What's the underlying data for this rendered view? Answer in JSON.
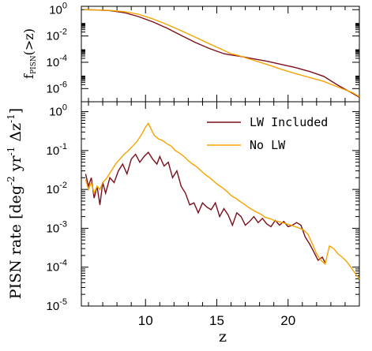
{
  "chart_data": [
    {
      "type": "line",
      "title": "",
      "xlabel": "",
      "ylabel": "f_PISN(>z)",
      "ylabel_main": "f",
      "ylabel_sub": "PISN",
      "ylabel_tail": "(>z)",
      "scale": "log-y",
      "xlim": [
        5.5,
        25
      ],
      "ylim": [
        1e-07,
        1.8
      ],
      "yticks": [
        {
          "value": 1,
          "base": "10",
          "exp": "0"
        },
        {
          "value": 0.01,
          "base": "10",
          "exp": "-2"
        },
        {
          "value": 0.0001,
          "base": "10",
          "exp": "-4"
        },
        {
          "value": 1e-06,
          "base": "10",
          "exp": "-6"
        }
      ],
      "series": [
        {
          "name": "LW Included",
          "color": "#7a0f1c",
          "x": [
            5.7,
            6.5,
            7.5,
            8.5,
            9.5,
            10.5,
            11.5,
            12.5,
            13.5,
            14.5,
            15.5,
            16.0,
            16.5,
            17.5,
            18.5,
            19.5,
            20.5,
            21.5,
            22.5,
            23.5,
            24.5,
            25.0
          ],
          "y": [
            1.0,
            0.95,
            0.85,
            0.6,
            0.3,
            0.12,
            0.04,
            0.011,
            0.0032,
            0.0011,
            0.00045,
            0.00036,
            0.0003,
            0.00019,
            0.00012,
            7e-05,
            4e-05,
            2e-05,
            8.5e-06,
            1.8e-06,
            4.5e-07,
            2.2e-07
          ]
        },
        {
          "name": "No LW",
          "color": "#f5a300",
          "x": [
            5.7,
            6.5,
            7.5,
            8.5,
            9.5,
            10.5,
            11.5,
            12.5,
            13.5,
            14.5,
            15.5,
            16.0,
            16.5,
            17.5,
            18.5,
            19.5,
            20.5,
            21.5,
            22.5,
            23.5,
            24.5,
            25.0
          ],
          "y": [
            1.0,
            0.95,
            0.88,
            0.7,
            0.45,
            0.2,
            0.075,
            0.025,
            0.008,
            0.0025,
            0.0008,
            0.00045,
            0.00033,
            0.00015,
            7e-05,
            3e-05,
            1.4e-05,
            7e-06,
            3.5e-06,
            1.3e-06,
            5e-07,
            2.5e-07
          ]
        }
      ]
    },
    {
      "type": "line",
      "title": "",
      "xlabel": "z",
      "ylabel": "PISN rate [deg^-2 yr^-1 Δz^-1]",
      "ylabel_parts": {
        "a": "PISN rate [deg",
        "b": "-2",
        "c": " yr",
        "d": "-1",
        "e": " Δz",
        "f": "-1",
        "g": "]"
      },
      "scale": "log-y",
      "xlim": [
        5.5,
        25
      ],
      "ylim": [
        1e-05,
        1.8
      ],
      "xticks": [
        "10",
        "15",
        "20"
      ],
      "xtick_values": [
        10,
        15,
        20
      ],
      "yticks": [
        {
          "value": 1,
          "base": "10",
          "exp": "0"
        },
        {
          "value": 0.1,
          "base": "10",
          "exp": "-1"
        },
        {
          "value": 0.01,
          "base": "10",
          "exp": "-2"
        },
        {
          "value": 0.001,
          "base": "10",
          "exp": "-3"
        },
        {
          "value": 0.0001,
          "base": "10",
          "exp": "-4"
        },
        {
          "value": 1e-05,
          "base": "10",
          "exp": "-5"
        }
      ],
      "legend": {
        "placement": "top-right",
        "entries": [
          "LW Included",
          "No LW"
        ]
      },
      "series": [
        {
          "name": "LW Included",
          "color": "#7a0f1c",
          "x": [
            5.8,
            6.0,
            6.2,
            6.4,
            6.6,
            6.8,
            7.0,
            7.2,
            7.5,
            7.8,
            8.1,
            8.4,
            8.7,
            9.0,
            9.3,
            9.6,
            9.9,
            10.2,
            10.5,
            10.8,
            11.0,
            11.3,
            11.6,
            11.9,
            12.2,
            12.5,
            12.8,
            13.1,
            13.4,
            13.7,
            14.0,
            14.3,
            14.6,
            14.9,
            15.2,
            15.5,
            15.8,
            16.1,
            16.4,
            16.7,
            17.0,
            17.3,
            17.6,
            17.9,
            18.2,
            18.5,
            18.8,
            19.1,
            19.4,
            19.7,
            20.0,
            20.3,
            20.6,
            20.9,
            21.2,
            21.5,
            21.8,
            22.1,
            22.4,
            22.6
          ],
          "y": [
            0.025,
            0.012,
            0.02,
            0.006,
            0.012,
            0.004,
            0.015,
            0.008,
            0.02,
            0.015,
            0.03,
            0.045,
            0.025,
            0.06,
            0.08,
            0.05,
            0.07,
            0.09,
            0.06,
            0.045,
            0.07,
            0.04,
            0.05,
            0.02,
            0.03,
            0.012,
            0.008,
            0.004,
            0.0045,
            0.0025,
            0.0045,
            0.0035,
            0.003,
            0.0045,
            0.002,
            0.0032,
            0.0022,
            0.0012,
            0.0025,
            0.002,
            0.0012,
            0.0015,
            0.002,
            0.0014,
            0.0018,
            0.0013,
            0.0011,
            0.0016,
            0.0012,
            0.0015,
            0.0011,
            0.0012,
            0.0014,
            0.0012,
            0.0006,
            0.0004,
            0.00025,
            0.00015,
            0.00018,
            0.00013
          ]
        },
        {
          "name": "No LW",
          "color": "#f5a300",
          "x": [
            5.8,
            6.0,
            6.2,
            6.4,
            6.6,
            6.8,
            7.0,
            7.3,
            7.6,
            7.9,
            8.2,
            8.5,
            8.8,
            9.1,
            9.4,
            9.7,
            10.0,
            10.2,
            10.4,
            10.6,
            10.9,
            11.2,
            11.5,
            11.8,
            12.1,
            12.4,
            12.7,
            13.0,
            13.3,
            13.6,
            13.9,
            14.2,
            14.5,
            14.8,
            15.1,
            15.4,
            15.7,
            16.0,
            16.3,
            16.6,
            16.9,
            17.2,
            17.5,
            17.8,
            18.1,
            18.4,
            18.7,
            19.0,
            19.3,
            19.6,
            19.9,
            20.2,
            20.5,
            20.8,
            21.1,
            21.4,
            21.7,
            22.0,
            22.3,
            22.6,
            22.9,
            23.2,
            23.5,
            23.8,
            24.1,
            24.4,
            24.7,
            25.0
          ],
          "y": [
            0.018,
            0.01,
            0.015,
            0.008,
            0.012,
            0.01,
            0.015,
            0.02,
            0.03,
            0.045,
            0.06,
            0.08,
            0.1,
            0.13,
            0.17,
            0.25,
            0.4,
            0.5,
            0.35,
            0.25,
            0.2,
            0.18,
            0.15,
            0.13,
            0.1,
            0.085,
            0.07,
            0.055,
            0.045,
            0.038,
            0.03,
            0.024,
            0.02,
            0.016,
            0.013,
            0.011,
            0.009,
            0.007,
            0.006,
            0.005,
            0.0042,
            0.0035,
            0.003,
            0.0026,
            0.0023,
            0.0019,
            0.0018,
            0.0016,
            0.0015,
            0.0014,
            0.0013,
            0.0012,
            0.0011,
            0.001,
            0.0009,
            0.0007,
            0.0004,
            0.00022,
            0.00015,
            0.00012,
            0.00035,
            0.0003,
            0.00022,
            0.00018,
            0.00014,
            0.0001,
            7e-05,
            5e-05
          ]
        }
      ]
    }
  ]
}
